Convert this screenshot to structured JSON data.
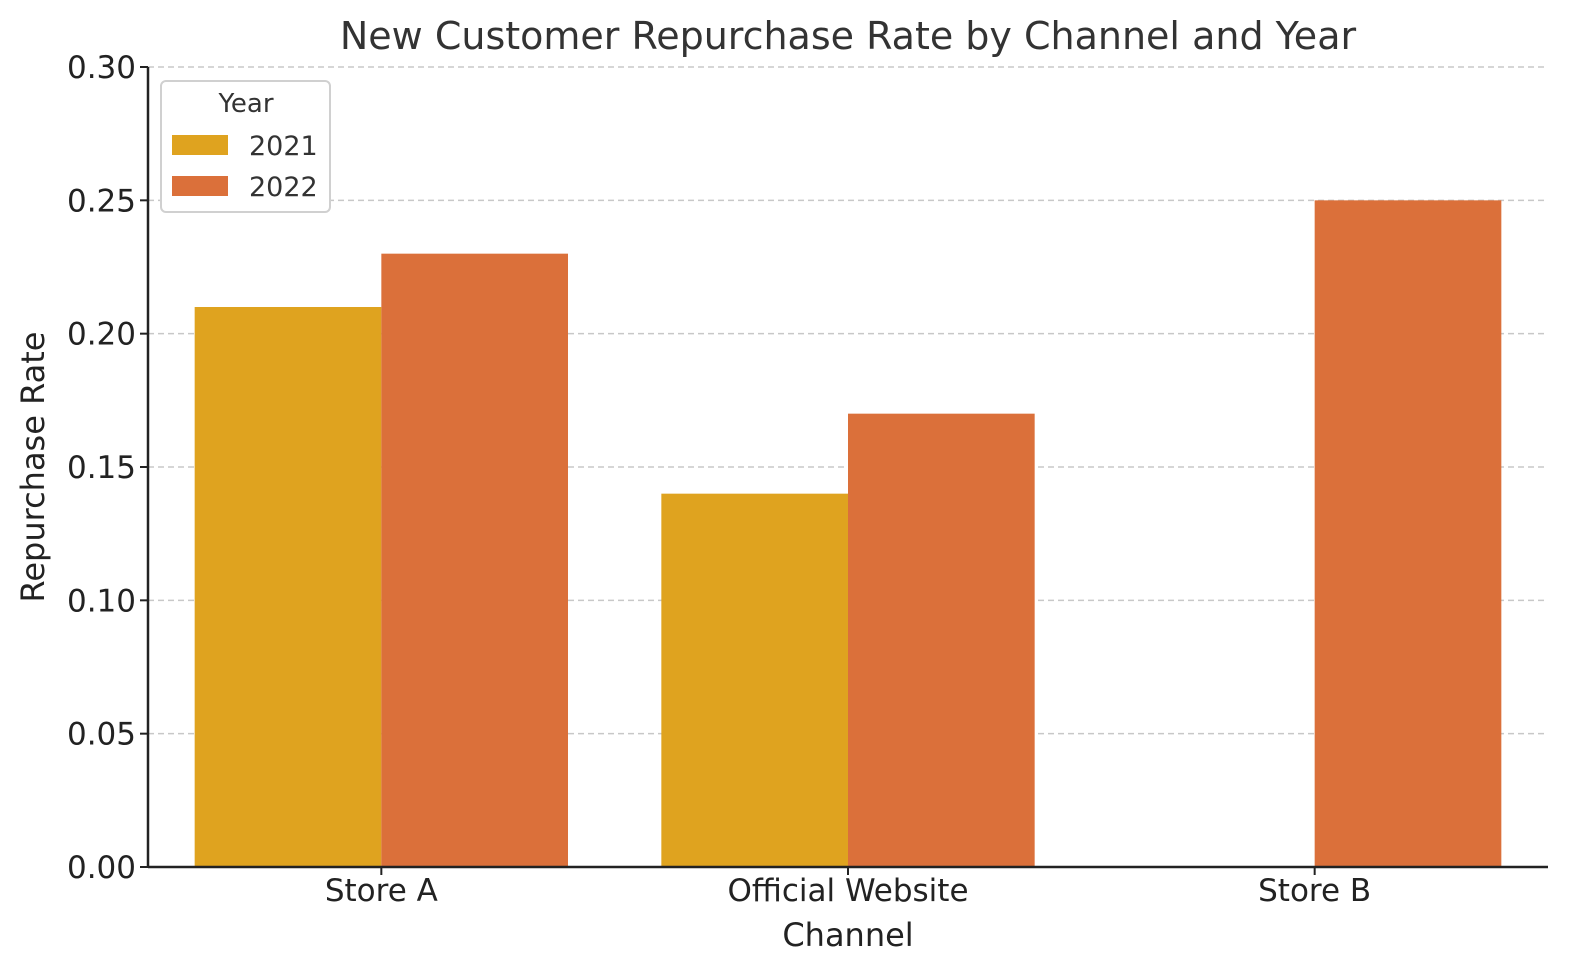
{
  "chart_data": {
    "type": "bar",
    "title": "New Customer Repurchase Rate by Channel and Year",
    "xlabel": "Channel",
    "ylabel": "Repurchase Rate",
    "categories": [
      "Store A",
      "Official Website",
      "Store B"
    ],
    "series": [
      {
        "name": "2021",
        "color": "#DFA31F",
        "values": [
          0.21,
          0.14,
          null
        ]
      },
      {
        "name": "2022",
        "color": "#DB703A",
        "values": [
          0.23,
          0.17,
          0.25
        ]
      }
    ],
    "ylim": [
      0,
      0.3
    ],
    "yticks": [
      "0.00",
      "0.05",
      "0.10",
      "0.15",
      "0.20",
      "0.25",
      "0.30"
    ],
    "grid": "y-dashed",
    "legend": {
      "title": "Year",
      "placement": "top-left"
    }
  }
}
